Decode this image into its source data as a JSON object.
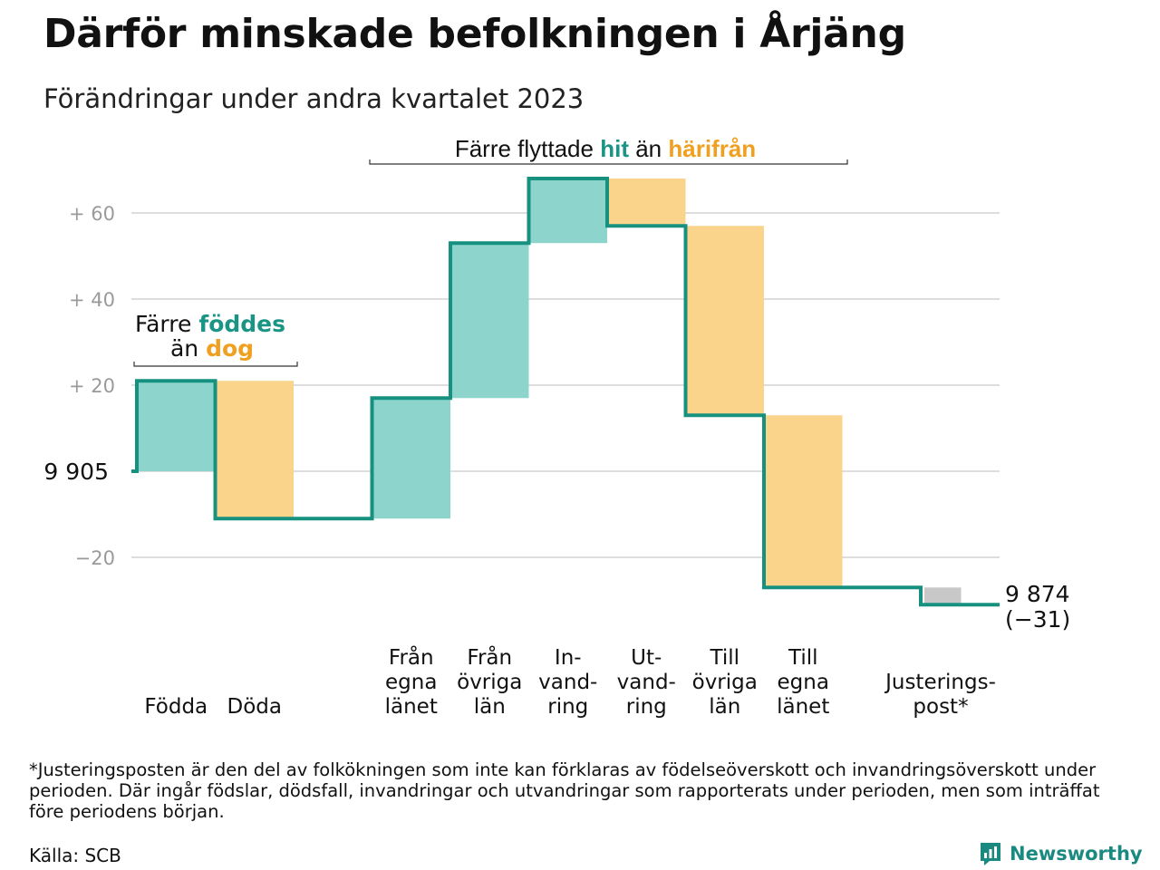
{
  "title": "Därför minskade befolkningen i Årjäng",
  "subtitle": "Förändringar under andra kvartalet 2023",
  "colors": {
    "increase": "#8dd4cc",
    "decrease": "#fbd48b",
    "adjustment": "#c8c8c8",
    "line": "#16917f",
    "teal_text": "#1a9585",
    "orange_text": "#f0a020",
    "grid": "#dddddd"
  },
  "chart_data": {
    "type": "waterfall",
    "start_value": 9905,
    "start_label": "9  905",
    "end_label": "9 874",
    "end_change_label": "(−31)",
    "ylim": [
      -30,
      68
    ],
    "yticks": [
      {
        "value": 60,
        "label": "+  60"
      },
      {
        "value": 40,
        "label": "+  40"
      },
      {
        "value": 20,
        "label": "+  20"
      },
      {
        "value": -20,
        "label": "−20"
      }
    ],
    "steps": [
      {
        "key": "fodda",
        "label_lines": [
          "Födda"
        ],
        "change": 21,
        "kind": "increase"
      },
      {
        "key": "doda",
        "label_lines": [
          "Döda"
        ],
        "change": -32,
        "kind": "decrease"
      },
      {
        "key": "gap",
        "label_lines": [],
        "change": 0,
        "kind": "none"
      },
      {
        "key": "fran-egna",
        "label_lines": [
          "Från",
          "egna",
          "länet"
        ],
        "change": 28,
        "kind": "increase"
      },
      {
        "key": "fran-ovriga",
        "label_lines": [
          "Från",
          "övriga",
          "län"
        ],
        "change": 36,
        "kind": "increase"
      },
      {
        "key": "invandring",
        "label_lines": [
          "In-",
          "vand-",
          "ring"
        ],
        "change": 15,
        "kind": "increase"
      },
      {
        "key": "utvandring",
        "label_lines": [
          "Ut-",
          "vand-",
          "ring"
        ],
        "change": -11,
        "kind": "decrease"
      },
      {
        "key": "till-ovriga",
        "label_lines": [
          "Till",
          "övriga",
          "län"
        ],
        "change": -44,
        "kind": "decrease"
      },
      {
        "key": "till-egna",
        "label_lines": [
          "Till",
          "egna",
          "länet"
        ],
        "change": -40,
        "kind": "decrease"
      },
      {
        "key": "gap2",
        "label_lines": [],
        "change": 0,
        "kind": "none"
      },
      {
        "key": "justering",
        "label_lines": [
          "Justerings-",
          "post*"
        ],
        "change": -4,
        "kind": "adjustment"
      }
    ],
    "annotations": {
      "births": {
        "line1": "Färre ",
        "line1_em": "föddes",
        "line2": "än ",
        "line2_em": "dog"
      },
      "migration": {
        "pre": "Färre flyttade ",
        "em1": "hit",
        "mid": " än ",
        "em2": "härifrån"
      }
    }
  },
  "footnote": "*Justeringsposten är den del av folkökningen som inte kan förklaras av födelseöverskott och invandringsöverskott under perioden. Där ingår födslar, dödsfall, invandringar och utvandringar som rapporterats under perioden, men som inträffat före periodens början.",
  "source": "Källa: SCB",
  "brand": {
    "name": "Newsworthy",
    "icon": "newsworthy-logo-icon"
  }
}
